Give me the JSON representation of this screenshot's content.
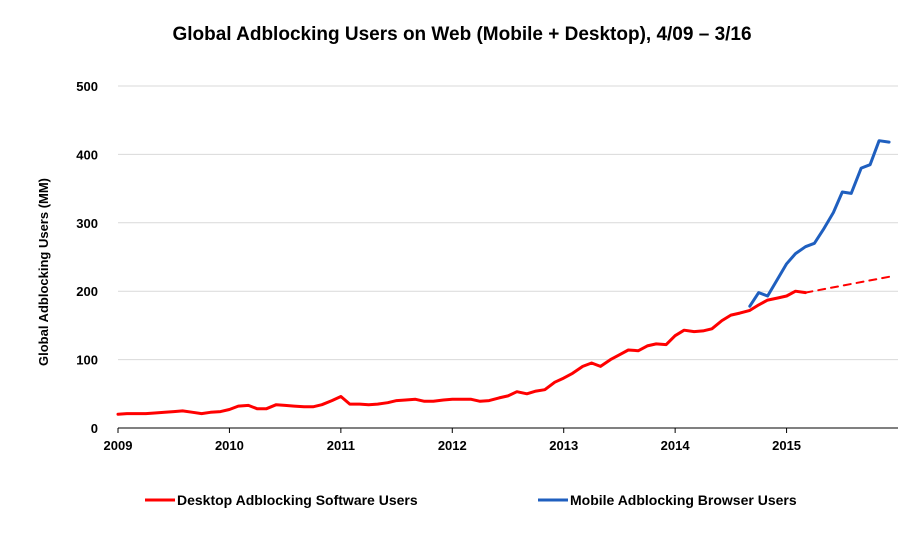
{
  "chart_data": {
    "type": "line",
    "title": "Global Adblocking Users on Web (Mobile + Desktop), 4/09 – 3/16",
    "ylabel": "Global Adblocking Users (MM)",
    "xlabel": "",
    "ylim": [
      0,
      500
    ],
    "yticks": [
      0,
      100,
      200,
      300,
      400,
      500
    ],
    "xlim": [
      2009,
      2016
    ],
    "xticks": [
      2009,
      2010,
      2011,
      2012,
      2013,
      2014,
      2015
    ],
    "grid": "horizontal",
    "legend": "bottom",
    "series": [
      {
        "name": "Desktop Adblocking Software Users",
        "color": "#ff0000",
        "style": "solid",
        "x": [
          2009.0,
          2009.08,
          2009.17,
          2009.25,
          2009.33,
          2009.42,
          2009.5,
          2009.58,
          2009.67,
          2009.75,
          2009.83,
          2009.92,
          2010.0,
          2010.08,
          2010.17,
          2010.25,
          2010.33,
          2010.42,
          2010.5,
          2010.58,
          2010.67,
          2010.75,
          2010.83,
          2010.92,
          2011.0,
          2011.08,
          2011.17,
          2011.25,
          2011.33,
          2011.42,
          2011.5,
          2011.58,
          2011.67,
          2011.75,
          2011.83,
          2011.92,
          2012.0,
          2012.08,
          2012.17,
          2012.25,
          2012.33,
          2012.42,
          2012.5,
          2012.58,
          2012.67,
          2012.75,
          2012.83,
          2012.92,
          2013.0,
          2013.08,
          2013.17,
          2013.25,
          2013.33,
          2013.42,
          2013.5,
          2013.58,
          2013.67,
          2013.75,
          2013.83,
          2013.92,
          2014.0,
          2014.08,
          2014.17,
          2014.25,
          2014.33,
          2014.42,
          2014.5,
          2014.58,
          2014.67,
          2014.75,
          2014.83,
          2014.92,
          2015.0,
          2015.08,
          2015.17
        ],
        "values": [
          20,
          21,
          21,
          21,
          22,
          23,
          24,
          25,
          23,
          21,
          23,
          24,
          27,
          32,
          33,
          28,
          28,
          34,
          33,
          32,
          31,
          31,
          34,
          40,
          46,
          35,
          35,
          34,
          35,
          37,
          40,
          41,
          42,
          39,
          39,
          41,
          42,
          42,
          42,
          39,
          40,
          44,
          47,
          53,
          50,
          54,
          56,
          67,
          73,
          80,
          90,
          95,
          90,
          100,
          107,
          114,
          113,
          120,
          123,
          122,
          135,
          143,
          141,
          142,
          145,
          157,
          165,
          168,
          172,
          180,
          187,
          190,
          193,
          200,
          198
        ]
      },
      {
        "name": "Desktop Adblocking Software Users (projected)",
        "color": "#ff0000",
        "style": "dashed",
        "x": [
          2015.17,
          2015.92
        ],
        "values": [
          198,
          221
        ]
      },
      {
        "name": "Mobile Adblocking Browser Users",
        "color": "#1f5fbf",
        "style": "solid",
        "x": [
          2014.67,
          2014.75,
          2014.83,
          2014.92,
          2015.0,
          2015.08,
          2015.17,
          2015.25,
          2015.33,
          2015.42,
          2015.5,
          2015.58,
          2015.67,
          2015.75,
          2015.83,
          2015.92
        ],
        "values": [
          178,
          198,
          193,
          218,
          240,
          255,
          265,
          270,
          290,
          315,
          345,
          343,
          380,
          385,
          420,
          418
        ]
      }
    ],
    "legend_entries": [
      {
        "label": "Desktop Adblocking Software Users",
        "color": "#ff0000"
      },
      {
        "label": "Mobile Adblocking Browser Users",
        "color": "#1f5fbf"
      }
    ]
  }
}
